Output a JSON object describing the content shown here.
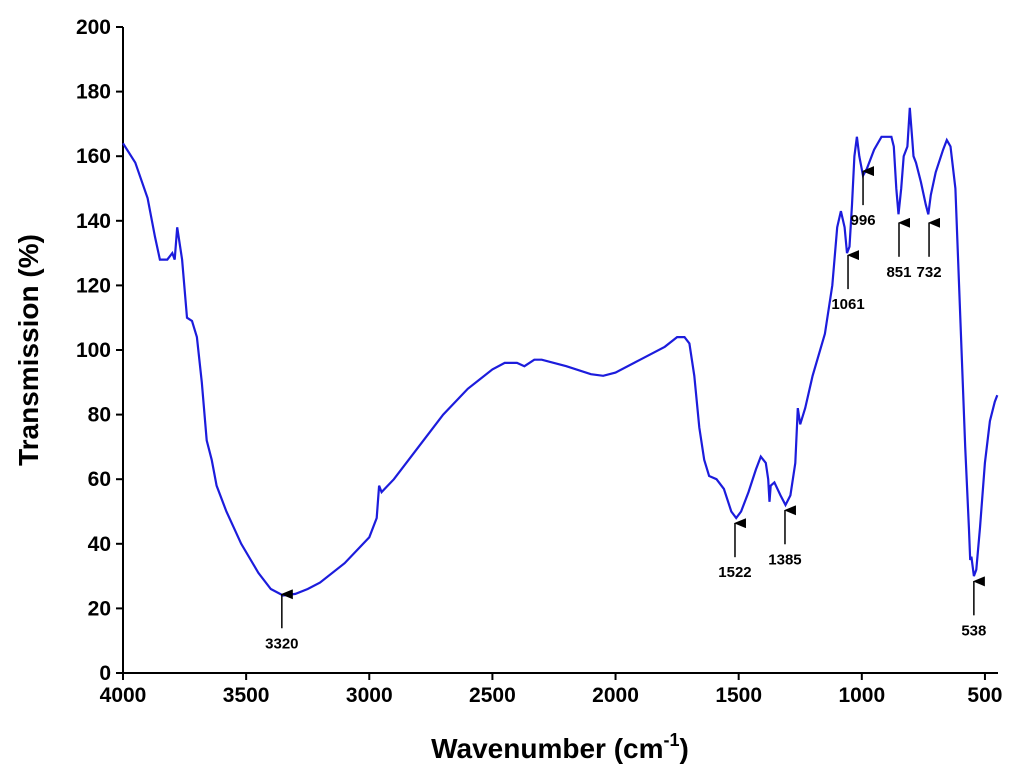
{
  "chart_data": {
    "type": "line",
    "xlabel": [
      "Wavenumber (cm",
      "-1",
      ")"
    ],
    "ylabel": "Transmission (%)",
    "color": "#1c1cdc",
    "xlim": [
      4000,
      447
    ],
    "xticks": [
      4000,
      3500,
      3000,
      2500,
      2000,
      1500,
      1000,
      500
    ],
    "ylim": [
      0,
      200
    ],
    "yticks": [
      0,
      20,
      40,
      60,
      80,
      100,
      120,
      140,
      160,
      180,
      200
    ],
    "x": [
      4000,
      3950,
      3900,
      3870,
      3850,
      3820,
      3800,
      3790,
      3780,
      3760,
      3740,
      3720,
      3700,
      3680,
      3660,
      3640,
      3620,
      3580,
      3520,
      3450,
      3400,
      3350,
      3300,
      3250,
      3200,
      3100,
      3000,
      2970,
      2960,
      2950,
      2900,
      2800,
      2700,
      2600,
      2500,
      2450,
      2400,
      2370,
      2330,
      2300,
      2200,
      2100,
      2050,
      2000,
      1900,
      1800,
      1750,
      1720,
      1700,
      1680,
      1660,
      1640,
      1620,
      1590,
      1560,
      1530,
      1510,
      1490,
      1460,
      1430,
      1410,
      1390,
      1380,
      1375,
      1370,
      1355,
      1330,
      1310,
      1290,
      1270,
      1260,
      1250,
      1230,
      1200,
      1150,
      1120,
      1100,
      1085,
      1070,
      1060,
      1050,
      1040,
      1030,
      1020,
      1010,
      995,
      980,
      950,
      920,
      880,
      870,
      860,
      851,
      840,
      830,
      815,
      805,
      795,
      790,
      780,
      760,
      740,
      730,
      720,
      700,
      670,
      655,
      640,
      620,
      600,
      580,
      565,
      560,
      555,
      545,
      535,
      520,
      500,
      480,
      460,
      450
    ],
    "values": [
      164,
      158,
      147,
      135,
      128,
      128,
      130,
      128,
      138,
      128,
      110,
      109,
      104,
      90,
      72,
      66,
      58,
      50,
      40,
      31,
      26,
      24,
      24.5,
      26,
      28,
      34,
      42,
      48,
      58,
      56,
      60,
      70,
      80,
      88,
      94,
      96,
      96,
      95,
      97,
      97,
      95,
      92.5,
      92,
      93,
      97,
      101,
      104,
      104,
      102,
      92,
      76,
      66,
      61,
      60,
      57,
      50,
      48,
      50,
      56,
      63,
      67,
      65,
      60,
      53,
      58,
      59,
      55,
      52,
      55,
      65,
      82,
      77,
      82,
      92,
      105,
      120,
      138,
      143,
      138,
      130,
      132,
      145,
      160,
      166,
      160,
      154,
      156,
      162,
      166,
      166,
      163,
      150,
      142,
      150,
      160,
      163,
      175,
      165,
      160,
      158,
      152,
      145,
      142,
      148,
      155,
      162,
      165,
      163,
      150,
      110,
      70,
      45,
      35,
      36,
      30,
      32,
      45,
      65,
      78,
      84,
      86
    ],
    "annotations": [
      {
        "text": "3320",
        "x": 3355,
        "y": 25
      },
      {
        "text": "1522",
        "x": 1515,
        "y": 47
      },
      {
        "text": "1385",
        "x": 1312,
        "y": 51
      },
      {
        "text": "1061",
        "x": 1056,
        "y": 130
      },
      {
        "text": "996",
        "x": 995,
        "y": 156
      },
      {
        "text": "851",
        "x": 849,
        "y": 140
      },
      {
        "text": "732",
        "x": 727,
        "y": 140
      },
      {
        "text": "538",
        "x": 545,
        "y": 29
      }
    ]
  }
}
